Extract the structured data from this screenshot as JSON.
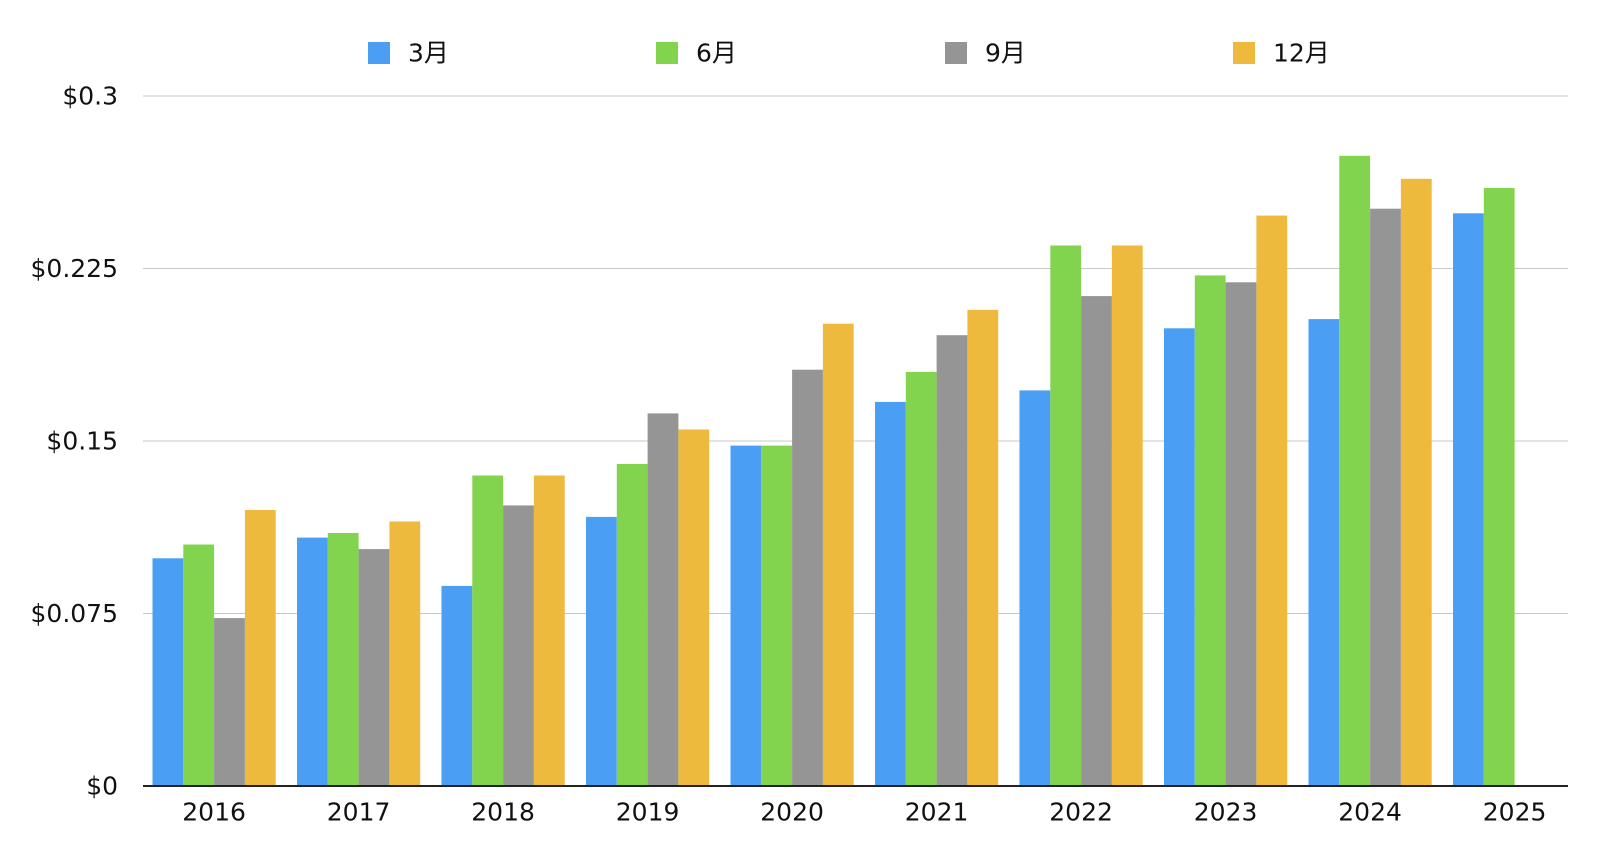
{
  "chart_data": {
    "type": "bar",
    "categories": [
      "2016",
      "2017",
      "2018",
      "2019",
      "2020",
      "2021",
      "2022",
      "2023",
      "2024",
      "2025"
    ],
    "series": [
      {
        "name": "3月",
        "color": "#4a9ff5",
        "values": [
          0.099,
          0.108,
          0.087,
          0.117,
          0.148,
          0.167,
          0.172,
          0.199,
          0.203,
          0.249
        ]
      },
      {
        "name": "6月",
        "color": "#82d44f",
        "values": [
          0.105,
          0.11,
          0.135,
          0.14,
          0.148,
          0.18,
          0.235,
          0.222,
          0.274,
          0.26
        ]
      },
      {
        "name": "9月",
        "color": "#959595",
        "values": [
          0.073,
          0.103,
          0.122,
          0.162,
          0.181,
          0.196,
          0.213,
          0.219,
          0.251,
          null
        ]
      },
      {
        "name": "12月",
        "color": "#eeba3d",
        "values": [
          0.12,
          0.115,
          0.135,
          0.155,
          0.201,
          0.207,
          0.235,
          0.248,
          0.264,
          null
        ]
      }
    ],
    "y_ticks": [
      "$0",
      "$0.075",
      "$0.15",
      "$0.225",
      "$0.3"
    ],
    "y_tick_values": [
      0,
      0.075,
      0.15,
      0.225,
      0.3
    ],
    "ylim": [
      0,
      0.3
    ],
    "grid": true,
    "legend_position": "top"
  }
}
